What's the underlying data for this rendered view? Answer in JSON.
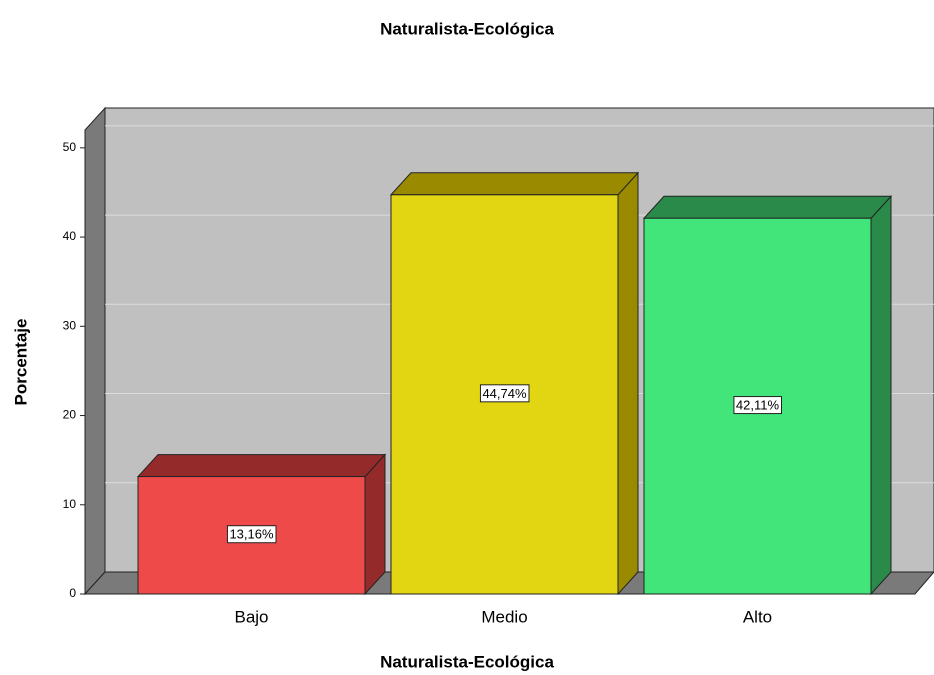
{
  "chart_data": {
    "type": "bar3d",
    "title": "Naturalista-Ecológica",
    "x_label": "Naturalista-Ecológica",
    "y_label": "Porcentaje",
    "categories": [
      "Bajo",
      "Medio",
      "Alto"
    ],
    "values": [
      13.16,
      44.74,
      42.11
    ],
    "value_labels": [
      "13,16%",
      "44,74%",
      "42,11%"
    ],
    "colors": [
      "#ef4a4a",
      "#e2d511",
      "#41e57a"
    ],
    "side_colors": [
      "#952a2a",
      "#9a8a00",
      "#2a8a4a"
    ],
    "ylim": [
      0,
      52
    ],
    "yticks": [
      0,
      10,
      20,
      30,
      40,
      50
    ],
    "grid": true
  }
}
